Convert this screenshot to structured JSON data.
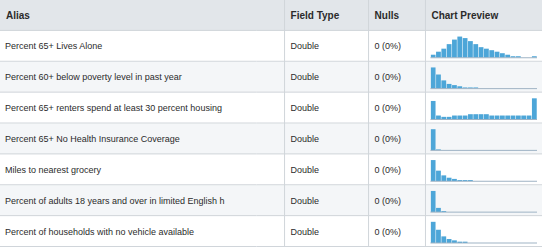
{
  "chart_data": {
    "type": "table",
    "columns": [
      "Alias",
      "Field Type",
      "Nulls",
      "Chart Preview"
    ],
    "rows": [
      {
        "alias": "Percent 65+ Lives Alone",
        "field_type": "Double",
        "nulls": "0 (0%)",
        "chart": {
          "type": "bar",
          "values": [
            2,
            4,
            6,
            9,
            12,
            14,
            13,
            11,
            9,
            7,
            6,
            5,
            4,
            3,
            2,
            1,
            1,
            0,
            0,
            1
          ],
          "ylim": [
            0,
            15.12
          ],
          "color": "#4da6d8",
          "tick_labels": false
        }
      },
      {
        "alias": "Percent 60+ below poverty level in past year",
        "field_type": "Double",
        "nulls": "0 (0%)",
        "chart": {
          "type": "bar",
          "values": [
            18,
            12,
            7,
            4,
            3,
            2,
            1,
            1,
            1,
            0,
            0,
            0,
            0,
            0,
            0,
            0,
            0,
            0,
            0,
            0
          ],
          "ylim": [
            0,
            19.44
          ],
          "color": "#4da6d8",
          "tick_labels": false
        }
      },
      {
        "alias": "Percent 65+ renters spend at least 30 percent housing",
        "field_type": "Double",
        "nulls": "0 (0%)",
        "chart": {
          "type": "bar",
          "values": [
            14,
            3,
            2,
            2,
            3,
            3,
            3,
            4,
            4,
            4,
            4,
            3,
            3,
            3,
            3,
            3,
            3,
            3,
            3,
            16
          ],
          "ylim": [
            0,
            17.28
          ],
          "color": "#4da6d8",
          "tick_labels": false
        }
      },
      {
        "alias": "Percent 65+  No Health Insurance Coverage",
        "field_type": "Double",
        "nulls": "0 (0%)",
        "chart": {
          "type": "bar",
          "values": [
            22,
            1,
            0,
            0,
            0,
            0,
            0,
            0,
            0,
            0,
            0,
            0,
            0,
            0,
            0,
            0,
            0,
            0,
            0,
            0
          ],
          "ylim": [
            0,
            23.76
          ],
          "color": "#4da6d8",
          "tick_labels": false
        }
      },
      {
        "alias": "Miles to nearest grocery",
        "field_type": "Double",
        "nulls": "0 (0%)",
        "chart": {
          "type": "bar",
          "values": [
            18,
            9,
            5,
            3,
            2,
            1,
            1,
            1,
            0,
            0,
            0,
            0,
            0,
            0,
            0,
            0,
            0,
            0,
            0,
            0
          ],
          "ylim": [
            0,
            19.44
          ],
          "color": "#4da6d8",
          "tick_labels": false
        }
      },
      {
        "alias": "Percent of adults 18 years and over in limited English h",
        "field_type": "Double",
        "nulls": "0 (0%)",
        "chart": {
          "type": "bar",
          "values": [
            20,
            4,
            1,
            0,
            0,
            0,
            0,
            0,
            0,
            0,
            0,
            0,
            0,
            0,
            0,
            0,
            0,
            0,
            0,
            0
          ],
          "ylim": [
            0,
            21.6
          ],
          "color": "#4da6d8",
          "tick_labels": false
        }
      },
      {
        "alias": "Percent of households with no vehicle available",
        "field_type": "Double",
        "nulls": "0 (0%)",
        "chart": {
          "type": "bar",
          "values": [
            16,
            10,
            5,
            3,
            2,
            1,
            1,
            0,
            0,
            0,
            0,
            0,
            0,
            0,
            0,
            0,
            0,
            0,
            0,
            0
          ],
          "ylim": [
            0,
            17.28
          ],
          "color": "#4da6d8",
          "tick_labels": false
        }
      }
    ]
  }
}
